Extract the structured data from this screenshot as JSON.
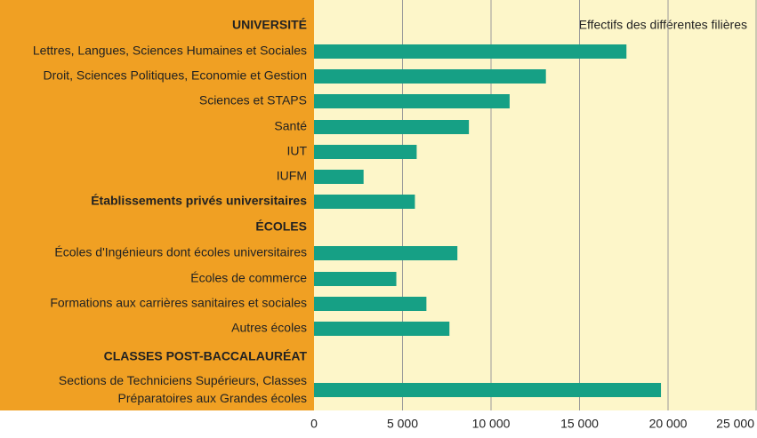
{
  "chart_data": {
    "type": "bar",
    "orientation": "horizontal",
    "annotation": "Effectifs des différentes filières",
    "categories": [
      "UNIVERSITÉ",
      "Lettres, Langues, Sciences Humaines et Sociales",
      "Droit, Sciences Politiques, Economie et Gestion",
      "Sciences et STAPS",
      "Santé",
      "IUT",
      "IUFM",
      "Établissements privés universitaires",
      "ÉCOLES",
      "Écoles d'Ingénieurs dont écoles universitaires",
      "Écoles de commerce",
      "Formations aux carrières  sanitaires et sociales",
      "Autres écoles",
      "CLASSES POST-BACCALAURÉAT",
      "Sections de Techniciens Supérieurs, Classes\nPréparatoires aux Grandes écoles"
    ],
    "values": [
      null,
      17650,
      13100,
      11050,
      8750,
      5800,
      2800,
      5700,
      null,
      8100,
      4650,
      6350,
      7650,
      null,
      19600
    ],
    "color": "#16a085",
    "xlim": [
      0,
      25000
    ],
    "xticks": [
      0,
      {
        "value": 5000,
        "label": "5 000"
      },
      {
        "value": 10000,
        "label": "10 000"
      },
      {
        "value": 15000,
        "label": "15 000"
      },
      {
        "value": 20000,
        "label": "20 000"
      },
      {
        "value": 25000,
        "label": "25 000"
      }
    ],
    "grid": true
  }
}
